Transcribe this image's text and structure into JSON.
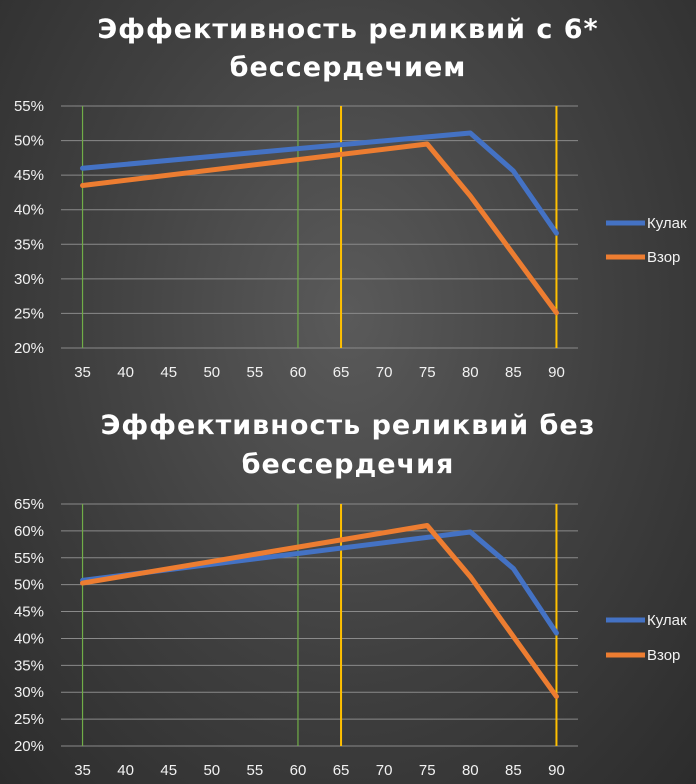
{
  "chart_data": [
    {
      "type": "line",
      "title_lines": [
        "Эффективность реликвий с 6*",
        "бессердечием"
      ],
      "x": [
        35,
        40,
        45,
        50,
        55,
        60,
        65,
        70,
        75,
        80,
        85,
        90
      ],
      "x_ticks": [
        "35",
        "40",
        "45",
        "50",
        "55",
        "60",
        "65",
        "70",
        "75",
        "80",
        "85",
        "90"
      ],
      "y_ticks": [
        "20%",
        "25%",
        "30%",
        "35%",
        "40%",
        "45%",
        "50%",
        "55%"
      ],
      "ylim": [
        20,
        55
      ],
      "grid": true,
      "legend_position": "right",
      "series": [
        {
          "name": "Кулак",
          "color": "#4472c4",
          "points": [
            [
              35,
              46
            ],
            [
              80,
              51.1
            ],
            [
              85,
              45.6
            ],
            [
              90,
              36.6
            ]
          ]
        },
        {
          "name": "Взор",
          "color": "#ed7d31",
          "points": [
            [
              35,
              43.5
            ],
            [
              75,
              49.5
            ],
            [
              80,
              42
            ],
            [
              90,
              25.1
            ]
          ]
        }
      ],
      "vertical_lines": [
        {
          "x": 35,
          "color": "#70ad47"
        },
        {
          "x": 60,
          "color": "#70ad47"
        },
        {
          "x": 65,
          "color": "#ffc000"
        },
        {
          "x": 90,
          "color": "#ffc000"
        }
      ]
    },
    {
      "type": "line",
      "title_lines": [
        "Эффективность реликвий без",
        "бессердечия"
      ],
      "x": [
        35,
        40,
        45,
        50,
        55,
        60,
        65,
        70,
        75,
        80,
        85,
        90
      ],
      "x_ticks": [
        "35",
        "40",
        "45",
        "50",
        "55",
        "60",
        "65",
        "70",
        "75",
        "80",
        "85",
        "90"
      ],
      "y_ticks": [
        "20%",
        "25%",
        "30%",
        "35%",
        "40%",
        "45%",
        "50%",
        "55%",
        "60%",
        "65%"
      ],
      "ylim": [
        20,
        65
      ],
      "grid": true,
      "legend_position": "right",
      "series": [
        {
          "name": "Кулак",
          "color": "#4472c4",
          "points": [
            [
              35,
              50.8
            ],
            [
              80,
              59.8
            ],
            [
              85,
              53
            ],
            [
              90,
              41
            ]
          ]
        },
        {
          "name": "Взор",
          "color": "#ed7d31",
          "points": [
            [
              35,
              50.3
            ],
            [
              75,
              61
            ],
            [
              80,
              51.5
            ],
            [
              90,
              29.2
            ]
          ]
        }
      ],
      "vertical_lines": [
        {
          "x": 35,
          "color": "#70ad47"
        },
        {
          "x": 60,
          "color": "#70ad47"
        },
        {
          "x": 65,
          "color": "#ffc000"
        },
        {
          "x": 90,
          "color": "#ffc000"
        }
      ]
    }
  ]
}
